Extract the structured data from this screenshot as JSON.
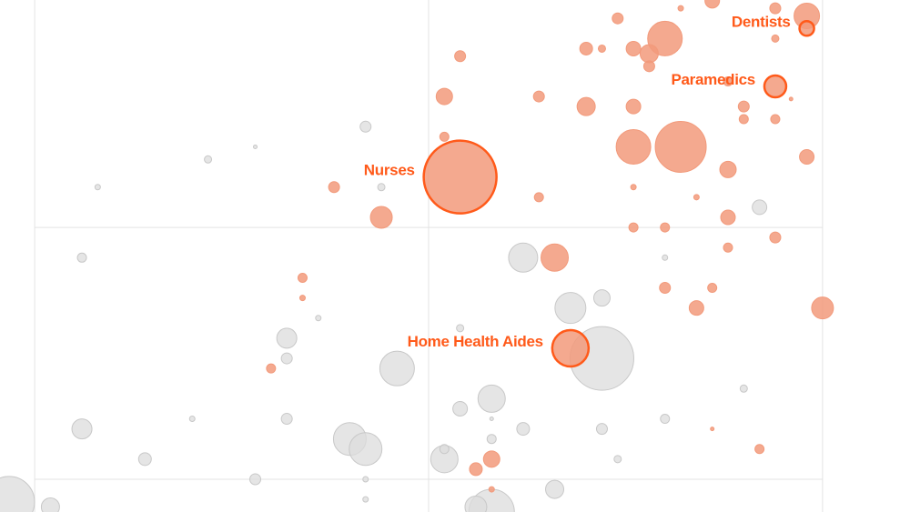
{
  "chart_data": {
    "type": "scatter",
    "subtype": "bubble",
    "title": "",
    "xlabel": "",
    "ylabel": "",
    "xlim": [
      -8.8,
      222.2
    ],
    "ylim": [
      -13,
      190.3
    ],
    "grid": true,
    "x_gridlines": [
      0,
      100,
      200
    ],
    "y_gridlines": [
      0,
      100
    ],
    "colors": {
      "health": "#f29a7b",
      "highlight_stroke": "#ff5a1a",
      "other": "#dcdcdc",
      "other_stroke": "#c8c8c8",
      "label": "#ff5a1a",
      "grid": "#e3e3e3"
    },
    "point_fields": [
      "x",
      "y",
      "size",
      "category"
    ],
    "highlighted": [
      {
        "label": "Nurses",
        "x": 108,
        "y": 120,
        "size": 40
      },
      {
        "label": "Home Health Aides",
        "x": 136,
        "y": 52,
        "size": 20
      },
      {
        "label": "Paramedics",
        "x": 188,
        "y": 156,
        "size": 12
      },
      {
        "label": "Dentists",
        "x": 196,
        "y": 179,
        "size": 8
      }
    ],
    "points": [
      [
        196,
        184,
        14,
        "health"
      ],
      [
        160,
        175,
        19,
        "health"
      ],
      [
        152,
        132,
        19,
        "health"
      ],
      [
        164,
        132,
        28,
        "health"
      ],
      [
        88,
        104,
        12,
        "health"
      ],
      [
        132,
        88,
        15,
        "health"
      ],
      [
        200,
        68,
        12,
        "health"
      ],
      [
        140,
        148,
        10,
        "health"
      ],
      [
        152,
        171,
        8,
        "health"
      ],
      [
        140,
        171,
        7,
        "health"
      ],
      [
        156,
        169,
        10,
        "health"
      ],
      [
        156,
        164,
        6,
        "health"
      ],
      [
        108,
        168,
        6,
        "health"
      ],
      [
        104,
        152,
        9,
        "health"
      ],
      [
        128,
        152,
        6,
        "health"
      ],
      [
        148,
        183,
        6,
        "health"
      ],
      [
        144,
        171,
        4,
        "health"
      ],
      [
        164,
        187,
        3,
        "health"
      ],
      [
        172,
        190,
        8,
        "health"
      ],
      [
        188,
        187,
        6,
        "health"
      ],
      [
        188,
        175,
        4,
        "health"
      ],
      [
        152,
        148,
        8,
        "health"
      ],
      [
        176,
        158,
        5,
        "health"
      ],
      [
        180,
        148,
        6,
        "health"
      ],
      [
        180,
        143,
        5,
        "health"
      ],
      [
        188,
        143,
        5,
        "health"
      ],
      [
        192,
        151,
        2,
        "health"
      ],
      [
        196,
        128,
        8,
        "health"
      ],
      [
        176,
        123,
        9,
        "health"
      ],
      [
        152,
        116,
        3,
        "health"
      ],
      [
        168,
        112,
        3,
        "health"
      ],
      [
        128,
        112,
        5,
        "health"
      ],
      [
        76,
        116,
        6,
        "health"
      ],
      [
        104,
        136,
        5,
        "health"
      ],
      [
        152,
        100,
        5,
        "health"
      ],
      [
        160,
        100,
        5,
        "health"
      ],
      [
        176,
        104,
        8,
        "health"
      ],
      [
        188,
        96,
        6,
        "health"
      ],
      [
        176,
        92,
        5,
        "health"
      ],
      [
        160,
        76,
        6,
        "health"
      ],
      [
        172,
        76,
        5,
        "health"
      ],
      [
        168,
        68,
        8,
        "health"
      ],
      [
        68,
        80,
        5,
        "health"
      ],
      [
        68,
        72,
        3,
        "health"
      ],
      [
        60,
        44,
        5,
        "health"
      ],
      [
        116,
        8,
        9,
        "health"
      ],
      [
        112,
        4,
        7,
        "health"
      ],
      [
        116,
        -4,
        3,
        "health"
      ],
      [
        172,
        20,
        2,
        "health"
      ],
      [
        184,
        12,
        5,
        "health"
      ],
      [
        84,
        140,
        6,
        "other"
      ],
      [
        56,
        132,
        2,
        "other"
      ],
      [
        44,
        127,
        4,
        "other"
      ],
      [
        16,
        116,
        3,
        "other"
      ],
      [
        88,
        116,
        4,
        "other"
      ],
      [
        184,
        108,
        8,
        "other"
      ],
      [
        12,
        88,
        5,
        "other"
      ],
      [
        124,
        88,
        16,
        "other"
      ],
      [
        136,
        68,
        17,
        "other"
      ],
      [
        144,
        72,
        9,
        "other"
      ],
      [
        160,
        88,
        3,
        "other"
      ],
      [
        72,
        64,
        3,
        "other"
      ],
      [
        64,
        56,
        11,
        "other"
      ],
      [
        64,
        48,
        6,
        "other"
      ],
      [
        92,
        44,
        19,
        "other"
      ],
      [
        144,
        48,
        35,
        "other"
      ],
      [
        108,
        60,
        4,
        "other"
      ],
      [
        180,
        36,
        4,
        "other"
      ],
      [
        116,
        32,
        15,
        "other"
      ],
      [
        108,
        28,
        8,
        "other"
      ],
      [
        116,
        24,
        2,
        "other"
      ],
      [
        40,
        24,
        3,
        "other"
      ],
      [
        64,
        24,
        6,
        "other"
      ],
      [
        12,
        20,
        11,
        "other"
      ],
      [
        80,
        16,
        18,
        "other"
      ],
      [
        84,
        12,
        18,
        "other"
      ],
      [
        124,
        20,
        7,
        "other"
      ],
      [
        144,
        20,
        6,
        "other"
      ],
      [
        160,
        24,
        5,
        "other"
      ],
      [
        104,
        8,
        15,
        "other"
      ],
      [
        104,
        12,
        5,
        "other"
      ],
      [
        116,
        16,
        5,
        "other"
      ],
      [
        28,
        8,
        7,
        "other"
      ],
      [
        148,
        8,
        4,
        "other"
      ],
      [
        56,
        0,
        6,
        "other"
      ],
      [
        84,
        0,
        3,
        "other"
      ],
      [
        84,
        -8,
        3,
        "other"
      ],
      [
        132,
        -4,
        10,
        "other"
      ],
      [
        4,
        -11,
        10,
        "other"
      ],
      [
        -6.5,
        -9,
        28,
        "other"
      ],
      [
        116,
        -13,
        25,
        "other"
      ],
      [
        112,
        -11,
        12,
        "other"
      ]
    ]
  }
}
